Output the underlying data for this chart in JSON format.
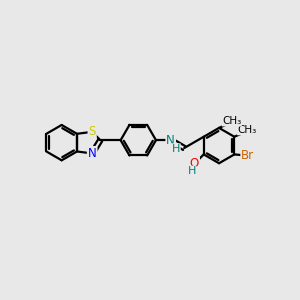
{
  "bg_color": "#e8e8e8",
  "bond_color": "#000000",
  "bond_width": 1.6,
  "atom_colors": {
    "S": "#cccc00",
    "N": "#0000ff",
    "N_imine": "#008080",
    "O": "#ff0000",
    "Br": "#cc6600",
    "C": "#000000",
    "H": "#008080"
  },
  "font_size": 8.5
}
